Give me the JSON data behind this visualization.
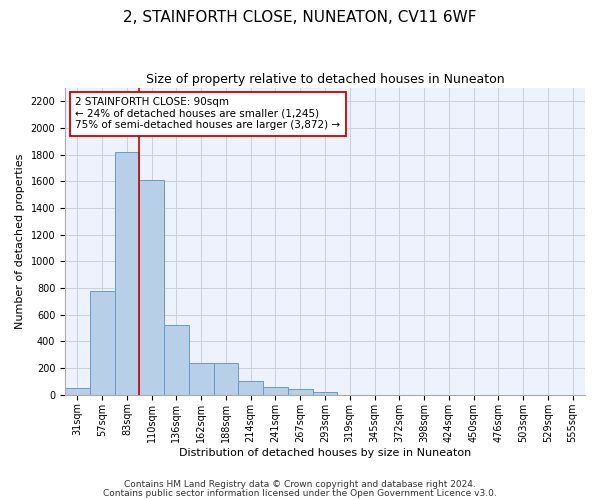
{
  "title": "2, STAINFORTH CLOSE, NUNEATON, CV11 6WF",
  "subtitle": "Size of property relative to detached houses in Nuneaton",
  "xlabel": "Distribution of detached houses by size in Nuneaton",
  "ylabel": "Number of detached properties",
  "categories": [
    "31sqm",
    "57sqm",
    "83sqm",
    "110sqm",
    "136sqm",
    "162sqm",
    "188sqm",
    "214sqm",
    "241sqm",
    "267sqm",
    "293sqm",
    "319sqm",
    "345sqm",
    "372sqm",
    "398sqm",
    "424sqm",
    "450sqm",
    "476sqm",
    "503sqm",
    "529sqm",
    "555sqm"
  ],
  "values": [
    50,
    780,
    1820,
    1610,
    520,
    240,
    235,
    105,
    55,
    40,
    22,
    0,
    0,
    0,
    0,
    0,
    0,
    0,
    0,
    0,
    0
  ],
  "bar_color": "#b8cfe8",
  "bar_edge_color": "#6699cc",
  "vline_x": 2.5,
  "vline_color": "#cc0000",
  "annotation_text": "2 STAINFORTH CLOSE: 90sqm\n← 24% of detached houses are smaller (1,245)\n75% of semi-detached houses are larger (3,872) →",
  "annotation_box_color": "#cc0000",
  "ylim": [
    0,
    2300
  ],
  "yticks": [
    0,
    200,
    400,
    600,
    800,
    1000,
    1200,
    1400,
    1600,
    1800,
    2000,
    2200
  ],
  "footer_line1": "Contains HM Land Registry data © Crown copyright and database right 2024.",
  "footer_line2": "Contains public sector information licensed under the Open Government Licence v3.0.",
  "bg_color": "#eef2fc",
  "grid_color": "#c8cfe0",
  "title_fontsize": 11,
  "subtitle_fontsize": 9,
  "axis_label_fontsize": 8,
  "tick_fontsize": 7,
  "annotation_fontsize": 7.5,
  "footer_fontsize": 6.5
}
